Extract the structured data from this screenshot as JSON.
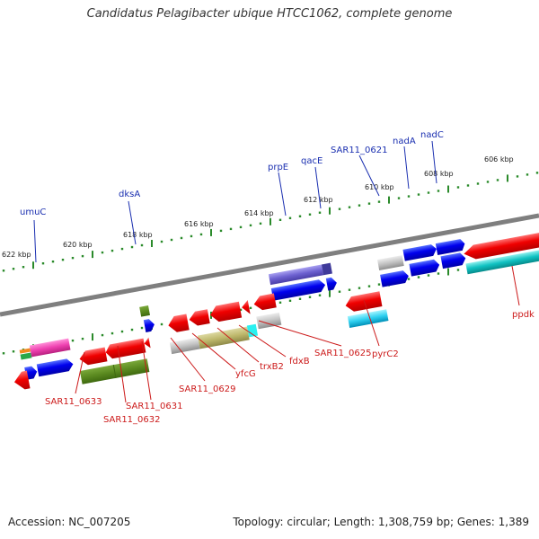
{
  "title": "Candidatus Pelagibacter ubique HTCC1062, complete genome",
  "footer": {
    "accession": "Accession: NC_007205",
    "topology": "Topology: circular; Length: 1,308,759 bp; Genes: 1,389"
  },
  "colors": {
    "backbone": "#7f7f7f",
    "tick_green": "#2a8a2a",
    "forward_label": "#1a2fb0",
    "reverse_label": "#cc1a1a"
  },
  "kbp_labels": [
    "622 kbp",
    "620 kbp",
    "618 kbp",
    "616 kbp",
    "614 kbp",
    "612 kbp",
    "610 kbp",
    "608 kbp",
    "606 kbp"
  ],
  "forward_genes": [
    "umuC",
    "dksA",
    "prpE",
    "qacE",
    "SAR11_0621",
    "nadA",
    "nadC"
  ],
  "reverse_genes": [
    "SAR11_0633",
    "SAR11_0631",
    "SAR11_0632",
    "SAR11_0629",
    "yfcG",
    "trxB2",
    "fdxB",
    "SAR11_0625",
    "pyrC2",
    "ppdk"
  ]
}
